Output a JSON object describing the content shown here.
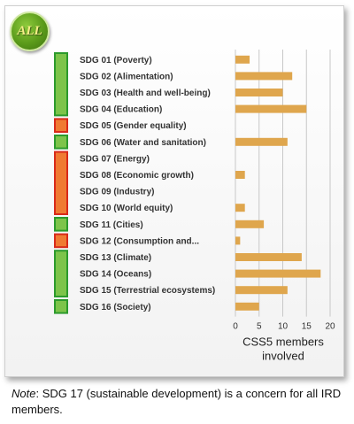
{
  "badge": {
    "label": "ALL"
  },
  "chart_data": {
    "type": "bar",
    "orientation": "horizontal",
    "categories": [
      "SDG 01 (Poverty)",
      "SDG 02 (Alimentation)",
      "SDG 03 (Health and well-being)",
      "SDG 04 (Education)",
      "SDG 05 (Gender equality)",
      "SDG 06 (Water and sanitation)",
      "SDG 07 (Energy)",
      "SDG 08 (Economic growth)",
      "SDG 09 (Industry)",
      "SDG 10 (World equity)",
      "SDG 11 (Cities)",
      "SDG 12 (Consumption and...",
      "SDG 13 (Climate)",
      "SDG 14 (Oceans)",
      "SDG 15 (Terrestrial ecosystems)",
      "SDG 16 (Society)"
    ],
    "values": [
      3,
      12,
      10,
      15,
      0,
      11,
      0,
      2,
      0,
      2,
      6,
      1,
      14,
      18,
      11,
      5
    ],
    "xlim": [
      0,
      20
    ],
    "xticks": [
      "0",
      "5",
      "10",
      "15",
      "20"
    ],
    "xlabel_lines": [
      "CSS5 members",
      "involved"
    ],
    "grid": "vertical",
    "bar_color": "#dfa64d",
    "status_groups": [
      {
        "color": "green",
        "rows": [
          0,
          3
        ]
      },
      {
        "color": "red",
        "rows": [
          4,
          4
        ]
      },
      {
        "color": "green",
        "rows": [
          5,
          5
        ]
      },
      {
        "color": "red",
        "rows": [
          6,
          9
        ]
      },
      {
        "color": "green",
        "rows": [
          10,
          10
        ]
      },
      {
        "color": "red",
        "rows": [
          11,
          11
        ]
      },
      {
        "color": "green",
        "rows": [
          12,
          14
        ]
      },
      {
        "color": "green",
        "rows": [
          15,
          15
        ]
      }
    ],
    "status_colors": {
      "green": "#7dc44a",
      "red": "#f07a32"
    },
    "status_borders": {
      "green": "#2c9a2c",
      "red": "#d82a1a"
    }
  },
  "note": {
    "prefix": "Note",
    "text": ": SDG 17 (sustainable development) is a concern for all IRD members."
  }
}
